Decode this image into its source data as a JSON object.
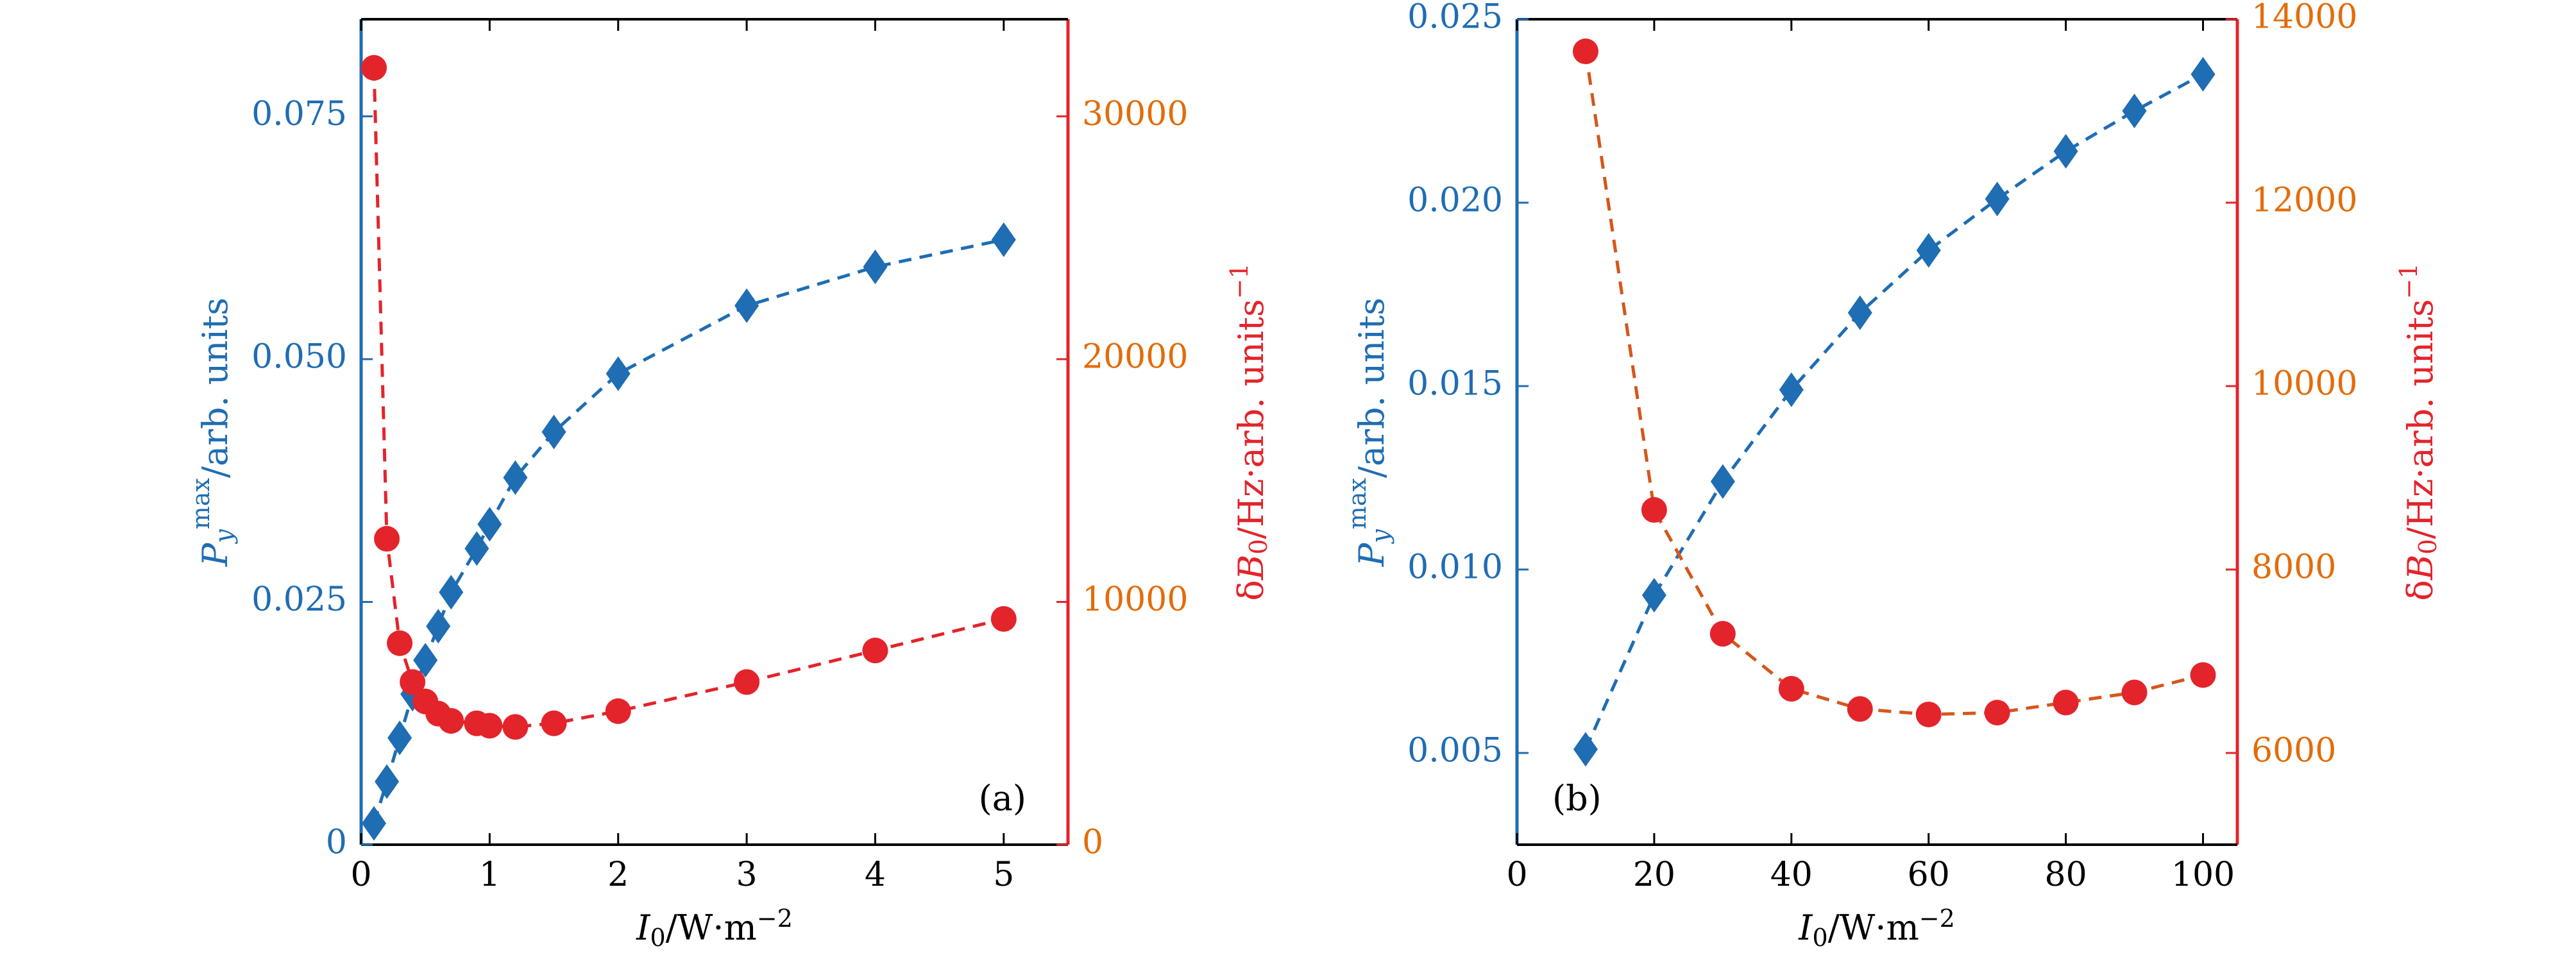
{
  "colors": {
    "left_axis": "#1f6db3",
    "right_axis": "#e3242b",
    "right_tick_labels": "#e36c0a",
    "diamond": "#1f6db3",
    "circle": "#e3242b",
    "line_a_blue": "#1f6db3",
    "line_a_red": "#e3242b",
    "line_b_blue": "#1f6db3",
    "line_b_red": "#d4571b",
    "axis_black": "#000000"
  },
  "icons": {
    "diamond_marker": "diamond",
    "circle_marker": "circle"
  },
  "chart_data": [
    {
      "type": "line",
      "panel_label": "(a)",
      "xlabel": "I0/W·m−2",
      "y_left_label": "Py max/arb. units",
      "y_right_label": "δB0/Hz·arb. units−1",
      "xlim": [
        0,
        5.5
      ],
      "y_left_lim": [
        0,
        0.085
      ],
      "y_right_lim": [
        0,
        34000
      ],
      "x_ticks": [
        "0",
        "1",
        "2",
        "3",
        "4",
        "5"
      ],
      "y_left_ticks": [
        "0",
        "0.025",
        "0.050",
        "0.075"
      ],
      "y_right_ticks": [
        "0",
        "10000",
        "20000",
        "30000"
      ],
      "grid": false,
      "series": [
        {
          "axis": "left",
          "marker": "diamond",
          "x": [
            0.1,
            0.2,
            0.3,
            0.4,
            0.5,
            0.6,
            0.7,
            0.9,
            1.0,
            1.2,
            1.5,
            2,
            3,
            4,
            5
          ],
          "y": [
            0.0022,
            0.0065,
            0.011,
            0.0155,
            0.019,
            0.0225,
            0.026,
            0.0305,
            0.033,
            0.0378,
            0.0425,
            0.0485,
            0.0555,
            0.0595,
            0.0623
          ]
        },
        {
          "axis": "right",
          "marker": "circle",
          "x": [
            0.1,
            0.2,
            0.3,
            0.4,
            0.5,
            0.6,
            0.7,
            0.9,
            1.0,
            1.2,
            1.5,
            2,
            3,
            4,
            5
          ],
          "y": [
            32000,
            12600,
            8300,
            6700,
            5900,
            5400,
            5100,
            5000,
            4900,
            4850,
            5000,
            5500,
            6700,
            8000,
            9300
          ]
        }
      ]
    },
    {
      "type": "line",
      "panel_label": "(b)",
      "xlabel": "I0/W·m−2",
      "y_left_label": "Py max/arb. units",
      "y_right_label": "δB0/Hz·arb. units−1",
      "xlim": [
        0,
        105
      ],
      "y_left_lim": [
        0.0025,
        0.025
      ],
      "y_right_lim": [
        5000,
        14000
      ],
      "x_ticks": [
        "0",
        "20",
        "40",
        "60",
        "80",
        "100"
      ],
      "y_left_ticks": [
        "0.005",
        "0.010",
        "0.015",
        "0.020",
        "0.025"
      ],
      "y_right_ticks": [
        "6000",
        "8000",
        "10000",
        "12000",
        "14000"
      ],
      "grid": false,
      "series": [
        {
          "axis": "left",
          "marker": "diamond",
          "x": [
            10,
            20,
            30,
            40,
            50,
            60,
            70,
            80,
            90,
            100
          ],
          "y": [
            0.0051,
            0.0093,
            0.0124,
            0.0149,
            0.017,
            0.0187,
            0.0201,
            0.0214,
            0.0225,
            0.0235
          ]
        },
        {
          "axis": "right",
          "marker": "circle",
          "x": [
            10,
            20,
            30,
            40,
            50,
            60,
            70,
            80,
            90,
            100
          ],
          "y": [
            13650,
            8650,
            7300,
            6700,
            6480,
            6420,
            6440,
            6550,
            6660,
            6850
          ]
        }
      ]
    }
  ]
}
